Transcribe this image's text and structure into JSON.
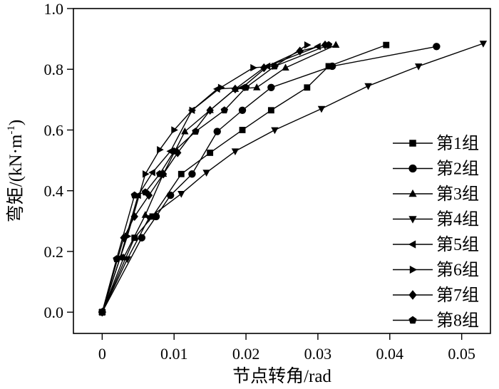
{
  "chart_data": {
    "type": "line",
    "xlabel": "节点转角/rad",
    "ylabel": "弯矩/(kN·m",
    "ylabel_sup": "-1",
    "ylabel_close": ")",
    "xlim": [
      -0.004,
      0.054
    ],
    "ylim": [
      -0.07,
      1.0
    ],
    "xticks": [
      {
        "value": 0,
        "label": "0"
      },
      {
        "value": 0.01,
        "label": "0.01"
      },
      {
        "value": 0.02,
        "label": "0.02"
      },
      {
        "value": 0.03,
        "label": "0.03"
      },
      {
        "value": 0.04,
        "label": "0.04"
      },
      {
        "value": 0.05,
        "label": "0.05"
      }
    ],
    "yticks": [
      {
        "value": 0.0,
        "label": "0.0"
      },
      {
        "value": 0.2,
        "label": "0.2"
      },
      {
        "value": 0.4,
        "label": "0.4"
      },
      {
        "value": 0.6,
        "label": "0.6"
      },
      {
        "value": 0.8,
        "label": "0.8"
      },
      {
        "value": 1.0,
        "label": "1.0"
      }
    ],
    "grid": false,
    "legend_position": "right",
    "series": [
      {
        "name": "第1组",
        "marker": "square",
        "x": [
          0,
          0.0045,
          0.007,
          0.011,
          0.015,
          0.0195,
          0.0235,
          0.0285,
          0.0315,
          0.0395
        ],
        "y": [
          0,
          0.245,
          0.315,
          0.455,
          0.525,
          0.6,
          0.665,
          0.74,
          0.81,
          0.88
        ]
      },
      {
        "name": "第2组",
        "marker": "circle",
        "x": [
          0,
          0.0055,
          0.0075,
          0.0095,
          0.0125,
          0.016,
          0.0195,
          0.0235,
          0.032,
          0.0465
        ],
        "y": [
          0,
          0.245,
          0.315,
          0.385,
          0.455,
          0.595,
          0.665,
          0.74,
          0.81,
          0.875
        ]
      },
      {
        "name": "第3组",
        "marker": "triangle-up",
        "x": [
          0,
          0.003,
          0.006,
          0.0085,
          0.0115,
          0.015,
          0.0185,
          0.0215,
          0.0255,
          0.0325
        ],
        "y": [
          0,
          0.18,
          0.32,
          0.455,
          0.595,
          0.665,
          0.735,
          0.74,
          0.805,
          0.88
        ]
      },
      {
        "name": "第4组",
        "marker": "triangle-down",
        "x": [
          0,
          0.0035,
          0.0065,
          0.011,
          0.0145,
          0.0185,
          0.024,
          0.0305,
          0.037,
          0.044,
          0.053
        ],
        "y": [
          0,
          0.175,
          0.31,
          0.39,
          0.46,
          0.53,
          0.6,
          0.67,
          0.745,
          0.81,
          0.885
        ]
      },
      {
        "name": "第5组",
        "marker": "triangle-left",
        "x": [
          0,
          0.0025,
          0.005,
          0.007,
          0.0095,
          0.0125,
          0.016,
          0.0195,
          0.023,
          0.03
        ],
        "y": [
          0,
          0.18,
          0.385,
          0.46,
          0.53,
          0.665,
          0.735,
          0.74,
          0.81,
          0.875
        ]
      },
      {
        "name": "第6组",
        "marker": "triangle-right",
        "x": [
          0,
          0.0035,
          0.006,
          0.008,
          0.01,
          0.0125,
          0.0165,
          0.021,
          0.024,
          0.0285
        ],
        "y": [
          0,
          0.25,
          0.455,
          0.535,
          0.6,
          0.665,
          0.74,
          0.805,
          0.81,
          0.88
        ]
      },
      {
        "name": "第7组",
        "marker": "diamond",
        "x": [
          0,
          0.003,
          0.0045,
          0.0065,
          0.0085,
          0.0105,
          0.015,
          0.0185,
          0.0225,
          0.0275,
          0.031
        ],
        "y": [
          0,
          0.245,
          0.315,
          0.385,
          0.455,
          0.525,
          0.665,
          0.735,
          0.805,
          0.86,
          0.88
        ]
      },
      {
        "name": "第8组",
        "marker": "pentagon",
        "x": [
          0,
          0.002,
          0.0045,
          0.006,
          0.008,
          0.01,
          0.013,
          0.017,
          0.02,
          0.024,
          0.0315
        ],
        "y": [
          0,
          0.175,
          0.385,
          0.395,
          0.455,
          0.53,
          0.595,
          0.665,
          0.74,
          0.81,
          0.88
        ]
      }
    ]
  }
}
